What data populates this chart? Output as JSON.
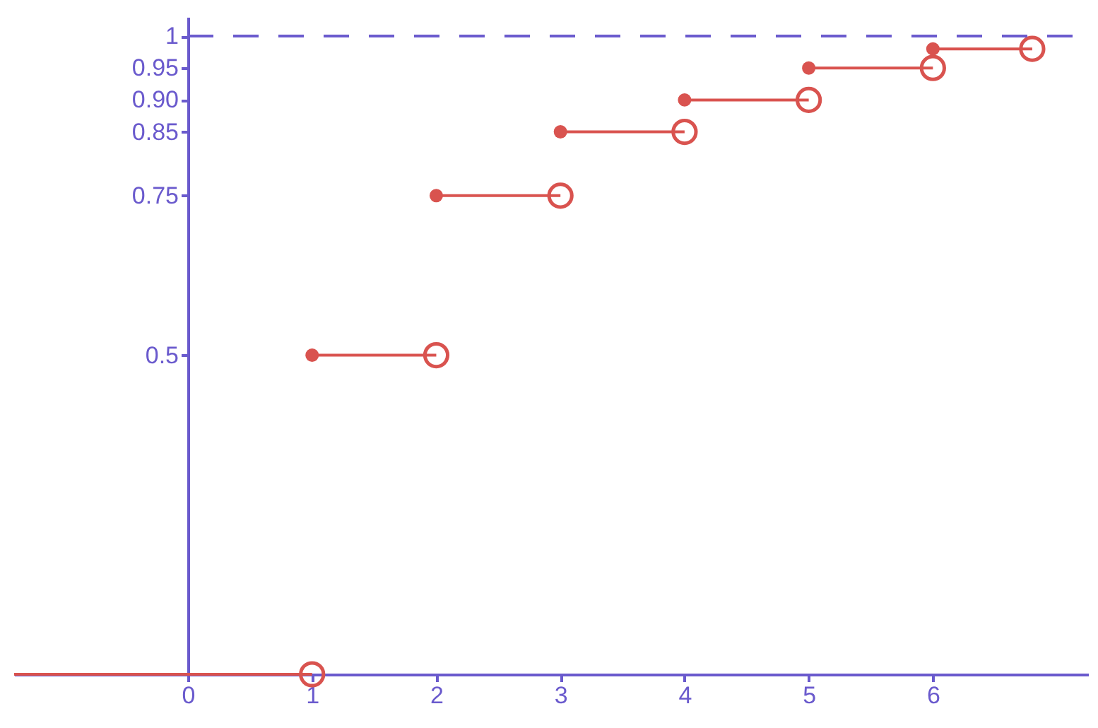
{
  "chart_data": {
    "type": "line",
    "xlim": [
      -1.4,
      7.25
    ],
    "ylim": [
      0,
      1.03
    ],
    "xticks": [
      0,
      1,
      2,
      3,
      4,
      5,
      6
    ],
    "yticks": [
      0.5,
      0.75,
      0.85,
      {
        "value": 0.9,
        "label": "0.90"
      },
      0.95,
      1
    ],
    "grid": false,
    "marker": "circle",
    "ref_lines": [
      {
        "axis": "y",
        "value": 1,
        "line_style": "dashed",
        "color": "#6a5acd"
      }
    ],
    "series": [
      {
        "color": "#d9534f",
        "x": [
          -1.4,
          1
        ],
        "values": [
          0,
          0
        ]
      },
      {
        "color": "#d9534f",
        "x": [
          1,
          2
        ],
        "values": [
          0.5,
          0.5
        ]
      },
      {
        "color": "#d9534f",
        "x": [
          2,
          3
        ],
        "values": [
          0.75,
          0.75
        ]
      },
      {
        "color": "#d9534f",
        "x": [
          3,
          4
        ],
        "values": [
          0.85,
          0.85
        ]
      },
      {
        "color": "#d9534f",
        "x": [
          4,
          5
        ],
        "values": [
          0.9,
          0.9
        ]
      },
      {
        "color": "#d9534f",
        "x": [
          5,
          6
        ],
        "values": [
          0.95,
          0.95
        ]
      },
      {
        "color": "#d9534f",
        "x": [
          6,
          6.8
        ],
        "values": [
          0.98,
          0.98
        ]
      }
    ]
  }
}
